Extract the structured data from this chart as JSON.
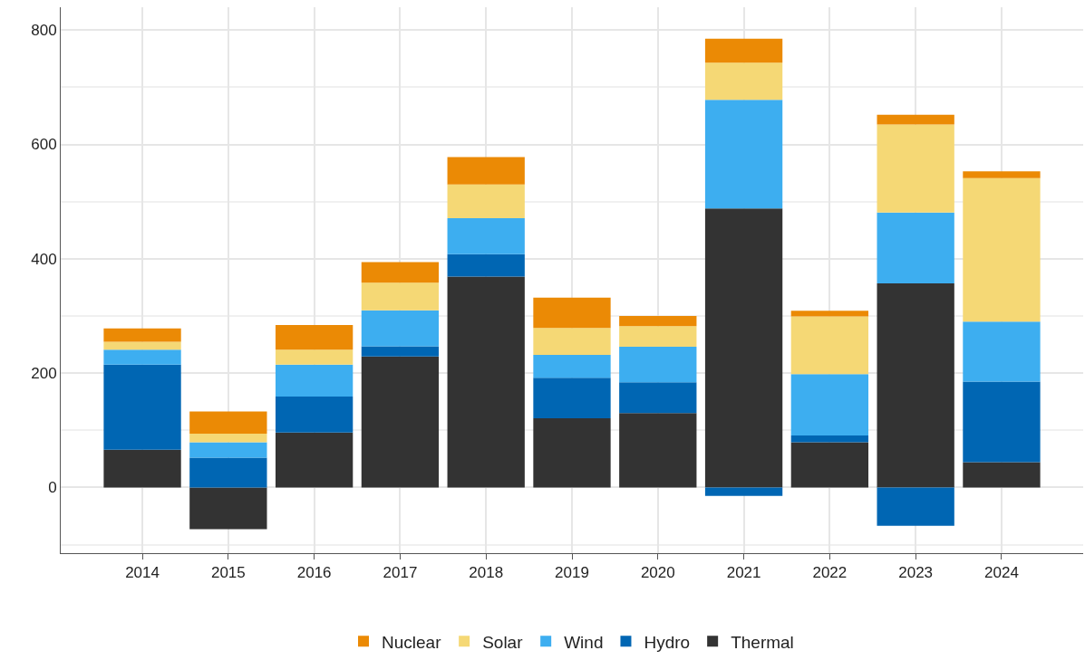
{
  "chart_data": {
    "type": "bar",
    "stacked": true,
    "categories": [
      "2014",
      "2015",
      "2016",
      "2017",
      "2018",
      "2019",
      "2020",
      "2021",
      "2022",
      "2023",
      "2024"
    ],
    "series": [
      {
        "name": "Thermal",
        "color": "#333333",
        "values": [
          66,
          -73,
          96,
          229,
          369,
          121,
          130,
          488,
          79,
          357,
          44
        ]
      },
      {
        "name": "Hydro",
        "color": "#0066b3",
        "values": [
          149,
          52,
          63,
          18,
          39,
          71,
          54,
          -15,
          12,
          -67,
          141
        ]
      },
      {
        "name": "Wind",
        "color": "#3daef0",
        "values": [
          26,
          27,
          56,
          63,
          63,
          40,
          62,
          190,
          107,
          124,
          105
        ]
      },
      {
        "name": "Solar",
        "color": "#f5d875",
        "values": [
          14,
          15,
          26,
          48,
          59,
          47,
          36,
          65,
          101,
          154,
          251
        ]
      },
      {
        "name": "Nuclear",
        "color": "#eb8a05",
        "values": [
          23,
          39,
          43,
          36,
          48,
          53,
          18,
          42,
          10,
          17,
          12
        ]
      }
    ],
    "ylim": [
      -115,
      840
    ],
    "yticks": [
      0,
      200,
      400,
      600,
      800
    ],
    "grid": true,
    "legend": "bottom"
  }
}
